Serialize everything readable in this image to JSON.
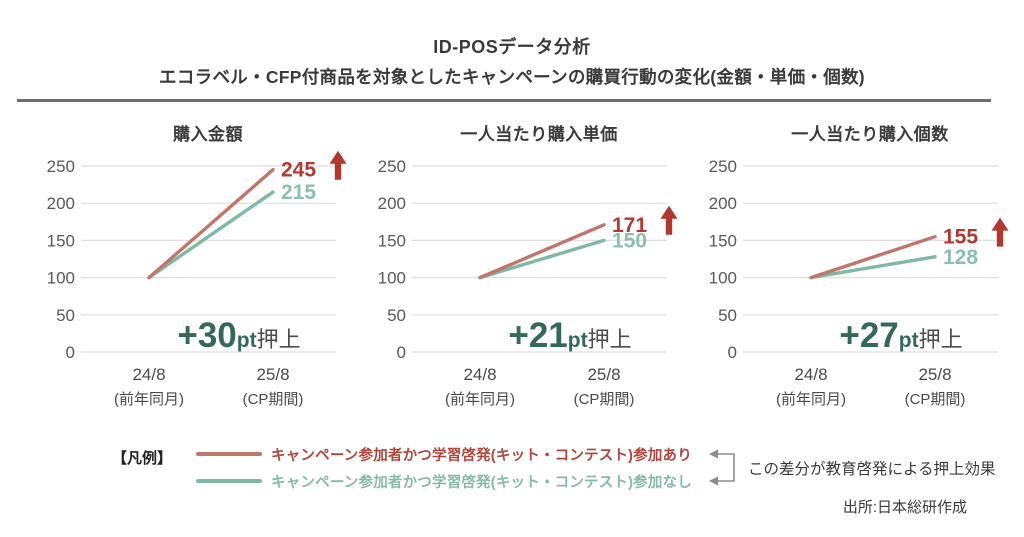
{
  "header": {
    "title_line1": "ID-POSデータ分析",
    "title_line2": "エコラベル・CFP付商品を対象としたキャンペーンの購買行動の変化(金額・単価・個数)"
  },
  "chart_data": [
    {
      "type": "line",
      "title": "購入金額",
      "x": [
        "24/8",
        "25/8"
      ],
      "x_sublabels": [
        "(前年同月)",
        "(CP期間)"
      ],
      "ylim": [
        0,
        250
      ],
      "yticks": [
        0,
        50,
        100,
        150,
        200,
        250
      ],
      "grid": true,
      "series": [
        {
          "name": "キャンペーン参加者かつ学習啓発(キット・コンテスト)参加あり",
          "values": [
            100,
            245
          ],
          "color": "#c0766c",
          "label_color": "#b03a31"
        },
        {
          "name": "キャンペーン参加者かつ学習啓発(キット・コンテスト)参加なし",
          "values": [
            100,
            215
          ],
          "color": "#7eb9a2",
          "label_color": "#8dc0ac"
        }
      ],
      "boost": {
        "value": "+30",
        "unit": "pt",
        "suffix": "押上"
      }
    },
    {
      "type": "line",
      "title": "一人当たり購入単価",
      "x": [
        "24/8",
        "25/8"
      ],
      "x_sublabels": [
        "(前年同月)",
        "(CP期間)"
      ],
      "ylim": [
        0,
        250
      ],
      "yticks": [
        0,
        50,
        100,
        150,
        200,
        250
      ],
      "grid": true,
      "series": [
        {
          "name": "キャンペーン参加者かつ学習啓発(キット・コンテスト)参加あり",
          "values": [
            100,
            171
          ],
          "color": "#c0766c",
          "label_color": "#b03a31"
        },
        {
          "name": "キャンペーン参加者かつ学習啓発(キット・コンテスト)参加なし",
          "values": [
            100,
            150
          ],
          "color": "#7eb9a2",
          "label_color": "#8dc0ac"
        }
      ],
      "boost": {
        "value": "+21",
        "unit": "pt",
        "suffix": "押上"
      }
    },
    {
      "type": "line",
      "title": "一人当たり購入個数",
      "x": [
        "24/8",
        "25/8"
      ],
      "x_sublabels": [
        "(前年同月)",
        "(CP期間)"
      ],
      "ylim": [
        0,
        250
      ],
      "yticks": [
        0,
        50,
        100,
        150,
        200,
        250
      ],
      "grid": true,
      "series": [
        {
          "name": "キャンペーン参加者かつ学習啓発(キット・コンテスト)参加あり",
          "values": [
            100,
            155
          ],
          "color": "#c0766c",
          "label_color": "#b03a31"
        },
        {
          "name": "キャンペーン参加者かつ学習啓発(キット・コンテスト)参加なし",
          "values": [
            100,
            128
          ],
          "color": "#7eb9a2",
          "label_color": "#8dc0ac"
        }
      ],
      "boost": {
        "value": "+27",
        "unit": "pt",
        "suffix": "押上"
      }
    }
  ],
  "legend": {
    "label": "【凡例】",
    "items": [
      {
        "text": "キャンペーン参加者かつ学習啓発(キット・コンテスト)参加あり",
        "color": "#c0766c",
        "text_color": "#b2463c"
      },
      {
        "text": "キャンペーン参加者かつ学習啓発(キット・コンテスト)参加なし",
        "color": "#7eb9a2",
        "text_color": "#87baa4"
      }
    ]
  },
  "note": "この差分が教育啓発による押上効果",
  "source": "出所:日本総研作成",
  "icons": {
    "up_arrow": "red-up-arrow-icon",
    "bracket": "left-pointing-brace-arrows"
  },
  "colors": {
    "line_with": "#c0766c",
    "line_without": "#7eb9a2",
    "value_with": "#b03a31",
    "value_without": "#8dc0ac",
    "boost_green": "#33685a",
    "boost_suffix": "#4d4d4d",
    "axis_text": "#595959",
    "x_text": "#4a4a4a",
    "grid": "#dfdfdf",
    "arrow_red": "#b2382f",
    "bracket_gray": "#8c8c8c"
  }
}
